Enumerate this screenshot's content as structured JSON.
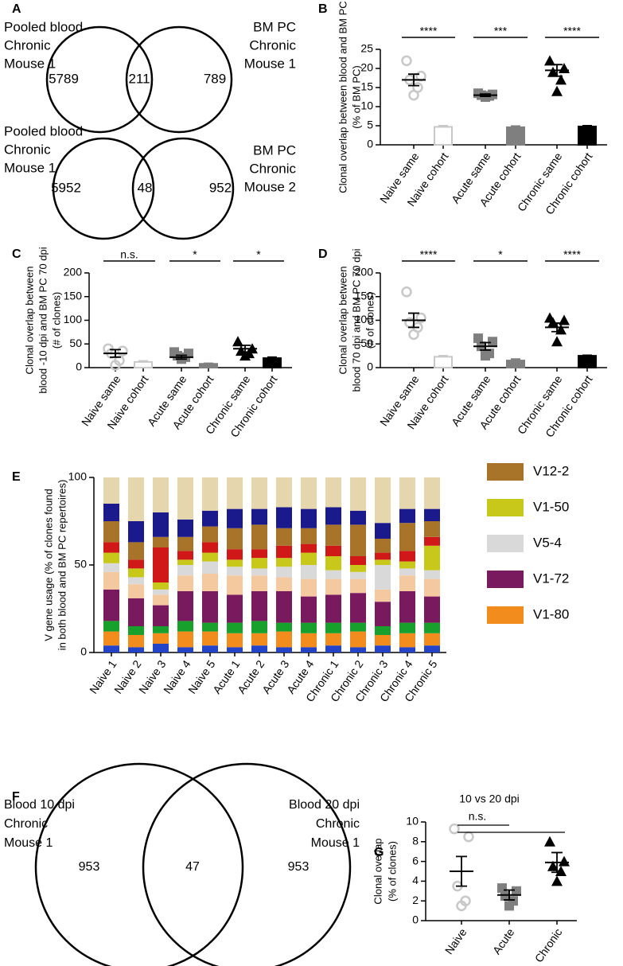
{
  "chart_data": [
    {
      "type": "venn",
      "panel": "A",
      "diagrams": [
        {
          "left_label": [
            "Pooled blood",
            "Chronic",
            "Mouse 1"
          ],
          "right_label": [
            "BM PC",
            "Chronic",
            "Mouse 1"
          ],
          "values": [
            5789,
            211,
            789
          ]
        },
        {
          "left_label": [
            "Pooled blood",
            "Chronic",
            "Mouse 1"
          ],
          "right_label": [
            "BM PC",
            "Chronic",
            "Mouse 2"
          ],
          "values": [
            5952,
            48,
            952
          ]
        }
      ]
    },
    {
      "type": "dotbar",
      "panel": "B",
      "ylabel": [
        "Clonal overlap between blood and BM PC",
        "(% of BM PC)"
      ],
      "categories": [
        "Naive same",
        "Naive cohort",
        "Acute same",
        "Acute cohort",
        "Chronic same",
        "Chronic cohort"
      ],
      "groups": [
        {
          "style": "dots",
          "marker": "circle",
          "color": "#c8c8c8",
          "points": [
            22,
            18,
            17,
            15,
            13
          ],
          "mean": 17,
          "error": 1.5
        },
        {
          "style": "bar",
          "marker": "circle",
          "color": "#c8c8c8",
          "mean": 4.7,
          "error": 0.3
        },
        {
          "style": "dots",
          "marker": "square",
          "color": "#7f7f7f",
          "points": [
            13.5,
            13.2,
            13,
            12.8,
            12.5
          ],
          "mean": 13,
          "error": 0.3
        },
        {
          "style": "bar",
          "marker": "square",
          "color": "#7f7f7f",
          "mean": 4.6,
          "error": 0.3
        },
        {
          "style": "dots",
          "marker": "triangle",
          "color": "#000000",
          "points": [
            22,
            20,
            19,
            17,
            14
          ],
          "mean": 19.5,
          "error": 1.5
        },
        {
          "style": "bar",
          "marker": "triangle",
          "color": "#000000",
          "mean": 4.8,
          "error": 0.2
        }
      ],
      "significance": [
        "****",
        "***",
        "****"
      ],
      "ylim": [
        0,
        25
      ],
      "yticks": [
        0,
        5,
        10,
        15,
        20,
        25
      ]
    },
    {
      "type": "dotbar",
      "panel": "C",
      "ylabel": [
        "Clonal overlap between",
        "blood -10 dpi and BM PC 70 dpi",
        "(# of clones)"
      ],
      "categories": [
        "Naive same",
        "Naive cohort",
        "Acute same",
        "Acute cohort",
        "Chronic same",
        "Chronic cohort"
      ],
      "groups": [
        {
          "style": "dots",
          "marker": "circle",
          "color": "#c8c8c8",
          "points": [
            40,
            35,
            30,
            15,
            5
          ],
          "mean": 30,
          "error": 8
        },
        {
          "style": "bar",
          "marker": "circle",
          "color": "#c8c8c8",
          "mean": 12,
          "error": 2
        },
        {
          "style": "dots",
          "marker": "square",
          "color": "#7f7f7f",
          "points": [
            33,
            30,
            25,
            22,
            18
          ],
          "mean": 22,
          "error": 4
        },
        {
          "style": "bar",
          "marker": "square",
          "color": "#7f7f7f",
          "mean": 8,
          "error": 1
        },
        {
          "style": "dots",
          "marker": "triangle",
          "color": "#000000",
          "points": [
            55,
            40,
            35,
            30,
            25
          ],
          "mean": 40,
          "error": 7
        },
        {
          "style": "bar",
          "marker": "triangle",
          "color": "#000000",
          "mean": 20,
          "error": 2
        }
      ],
      "significance": [
        "n.s.",
        "*",
        "*"
      ],
      "ylim": [
        0,
        200
      ],
      "yticks": [
        0,
        50,
        100,
        150,
        200
      ]
    },
    {
      "type": "dotbar",
      "panel": "D",
      "ylabel": [
        "Clonal overlap between",
        "blood 70 dpi and BM PC 70 dpi",
        "(# of clones)"
      ],
      "categories": [
        "Naive same",
        "Naive cohort",
        "Acute same",
        "Acute cohort",
        "Chronic same",
        "Chronic cohort"
      ],
      "groups": [
        {
          "style": "dots",
          "marker": "circle",
          "color": "#c8c8c8",
          "points": [
            160,
            105,
            95,
            85,
            70
          ],
          "mean": 100,
          "error": 15
        },
        {
          "style": "bar",
          "marker": "circle",
          "color": "#c8c8c8",
          "mean": 23,
          "error": 2
        },
        {
          "style": "dots",
          "marker": "square",
          "color": "#7f7f7f",
          "points": [
            62,
            55,
            45,
            30,
            25
          ],
          "mean": 45,
          "error": 8
        },
        {
          "style": "bar",
          "marker": "square",
          "color": "#7f7f7f",
          "mean": 15,
          "error": 3
        },
        {
          "style": "dots",
          "marker": "triangle",
          "color": "#000000",
          "points": [
            105,
            100,
            95,
            80,
            55
          ],
          "mean": 85,
          "error": 9
        },
        {
          "style": "bar",
          "marker": "triangle",
          "color": "#000000",
          "mean": 25,
          "error": 1
        }
      ],
      "significance": [
        "****",
        "*",
        "****"
      ],
      "ylim": [
        0,
        200
      ],
      "yticks": [
        0,
        50,
        100,
        150,
        200
      ]
    },
    {
      "type": "stacked",
      "panel": "E",
      "ylabel": [
        "V gene usage (% of clones found",
        "in both blood and BM PC repertoires)"
      ],
      "categories": [
        "Naive 1",
        "Naive 2",
        "Naive 3",
        "Naive 4",
        "Naive 5",
        "Acute 1",
        "Acute 2",
        "Acute 3",
        "Acute 4",
        "Chronic 1",
        "Chronic 2",
        "Chronic 3",
        "Chronic 4",
        "Chronic 5"
      ],
      "ylim": [
        0,
        100
      ],
      "yticks": [
        0,
        50,
        100
      ],
      "series": [
        {
          "color": "#2343c8",
          "values": [
            4,
            3,
            5,
            3,
            4,
            3,
            4,
            3,
            3,
            4,
            3,
            4,
            3,
            4
          ]
        },
        {
          "name": "V1-80",
          "color": "#f28c1c",
          "values": [
            8,
            7,
            6,
            9,
            8,
            8,
            7,
            9,
            8,
            7,
            9,
            6,
            8,
            7
          ]
        },
        {
          "color": "#17a02c",
          "values": [
            6,
            5,
            4,
            6,
            5,
            6,
            7,
            5,
            6,
            6,
            5,
            5,
            6,
            6
          ]
        },
        {
          "name": "V1-72",
          "color": "#7a1a5e",
          "values": [
            18,
            16,
            12,
            17,
            18,
            16,
            17,
            18,
            15,
            16,
            17,
            14,
            18,
            15
          ]
        },
        {
          "color": "#f5c9a0",
          "values": [
            10,
            8,
            6,
            9,
            10,
            11,
            9,
            8,
            10,
            9,
            8,
            7,
            9,
            10
          ]
        },
        {
          "name": "V5-4",
          "color": "#d9d9d9",
          "values": [
            5,
            4,
            3,
            6,
            7,
            5,
            4,
            6,
            8,
            5,
            4,
            14,
            4,
            5
          ]
        },
        {
          "name": "V1-50",
          "color": "#c8c81a",
          "values": [
            6,
            5,
            4,
            3,
            5,
            4,
            6,
            5,
            7,
            8,
            4,
            3,
            4,
            14
          ]
        },
        {
          "color": "#d01818",
          "values": [
            6,
            5,
            20,
            5,
            6,
            6,
            5,
            7,
            5,
            6,
            5,
            4,
            6,
            5
          ]
        },
        {
          "name": "V12-2",
          "color": "#a8742a",
          "values": [
            12,
            10,
            6,
            8,
            9,
            12,
            14,
            10,
            9,
            12,
            18,
            8,
            16,
            9
          ]
        },
        {
          "color": "#1a1a8c",
          "values": [
            10,
            12,
            14,
            10,
            9,
            11,
            9,
            12,
            11,
            10,
            8,
            9,
            8,
            7
          ]
        },
        {
          "color": "#e6d6ae",
          "values": [
            15,
            25,
            20,
            24,
            19,
            18,
            18,
            17,
            18,
            17,
            19,
            26,
            18,
            18
          ]
        }
      ]
    },
    {
      "type": "venn",
      "panel": "F",
      "diagrams": [
        {
          "left_label": [
            "Blood 10 dpi",
            "Chronic",
            "Mouse 1"
          ],
          "right_label": [
            "Blood 20 dpi",
            "Chronic",
            "Mouse 1"
          ],
          "values": [
            953,
            47,
            953
          ]
        }
      ]
    },
    {
      "type": "dot",
      "panel": "G",
      "title": "10 vs 20 dpi",
      "ylabel": [
        "Clonal overlap",
        "(% of clones)"
      ],
      "categories": [
        "Naive",
        "Acute",
        "Chronic"
      ],
      "groups": [
        {
          "style": "dots",
          "marker": "circle",
          "color": "#c8c8c8",
          "points": [
            9.3,
            8.5,
            3.5,
            2,
            1.5
          ],
          "mean": 5,
          "error": 1.5
        },
        {
          "style": "dots",
          "marker": "square",
          "color": "#7f7f7f",
          "points": [
            3.3,
            3,
            2.5,
            2,
            1.5
          ],
          "mean": 2.6,
          "error": 0.5
        },
        {
          "style": "dots",
          "marker": "triangle",
          "color": "#000000",
          "points": [
            8,
            6,
            5.5,
            5,
            4
          ],
          "mean": 5.9,
          "error": 1
        }
      ],
      "annotation": "n.s.",
      "ylim": [
        0,
        10
      ],
      "yticks": [
        0,
        2,
        4,
        6,
        8,
        10
      ]
    }
  ]
}
